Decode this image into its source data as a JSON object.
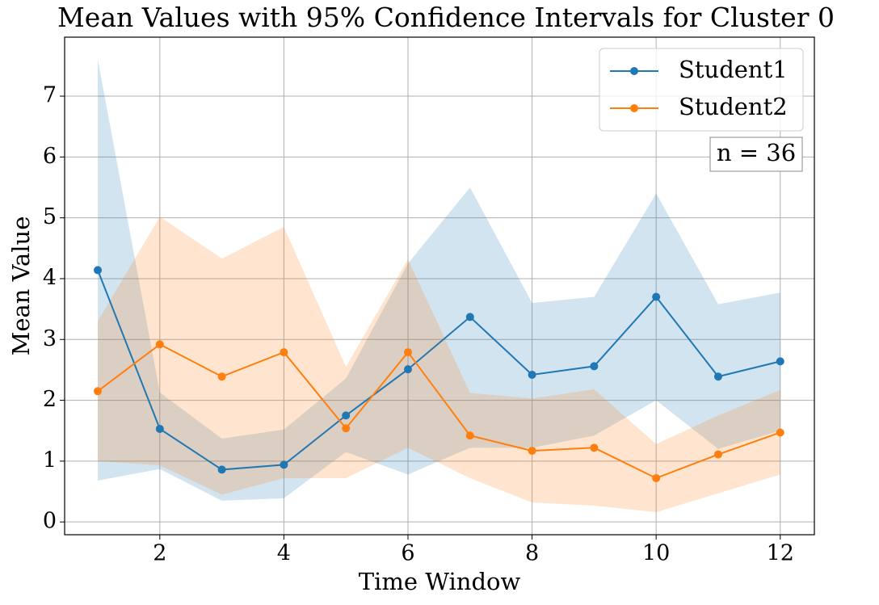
{
  "chart_data": {
    "type": "line",
    "title": "Mean Values with 95% Confidence Intervals for Cluster 0",
    "x_label": "Time Window",
    "y_label": "Mean Value",
    "x": [
      1,
      2,
      3,
      4,
      5,
      6,
      7,
      8,
      9,
      10,
      11,
      12
    ],
    "series": [
      {
        "name": "Student1",
        "color": "#1f77b4",
        "values": [
          4.14,
          1.53,
          0.86,
          0.94,
          1.75,
          2.51,
          3.37,
          2.42,
          2.56,
          3.7,
          2.39,
          2.64
        ],
        "upper": [
          7.6,
          2.13,
          1.37,
          1.52,
          2.36,
          4.25,
          5.5,
          3.6,
          3.7,
          5.4,
          3.58,
          3.77
        ],
        "lower": [
          0.68,
          0.87,
          0.35,
          0.39,
          1.15,
          0.78,
          1.22,
          1.22,
          1.42,
          2.0,
          1.2,
          1.5
        ]
      },
      {
        "name": "Student2",
        "color": "#ff7f0e",
        "values": [
          2.15,
          2.92,
          2.39,
          2.79,
          1.54,
          2.79,
          1.42,
          1.17,
          1.22,
          0.72,
          1.11,
          1.47
        ],
        "upper": [
          3.3,
          5.02,
          4.33,
          4.85,
          2.55,
          4.32,
          2.12,
          2.03,
          2.18,
          1.28,
          1.75,
          2.17
        ],
        "lower": [
          1.0,
          0.93,
          0.45,
          0.72,
          0.72,
          1.22,
          0.72,
          0.32,
          0.27,
          0.16,
          0.47,
          0.78
        ]
      }
    ],
    "annotation": "n = 36",
    "xlim": [
      0.466,
      12.55
    ],
    "ylim": [
      -0.21,
      7.97
    ],
    "xticks": [
      2,
      4,
      6,
      8,
      10,
      12
    ],
    "yticks": [
      0,
      1,
      2,
      3,
      4,
      5,
      6,
      7
    ],
    "grid": true,
    "legend": "upper right"
  }
}
